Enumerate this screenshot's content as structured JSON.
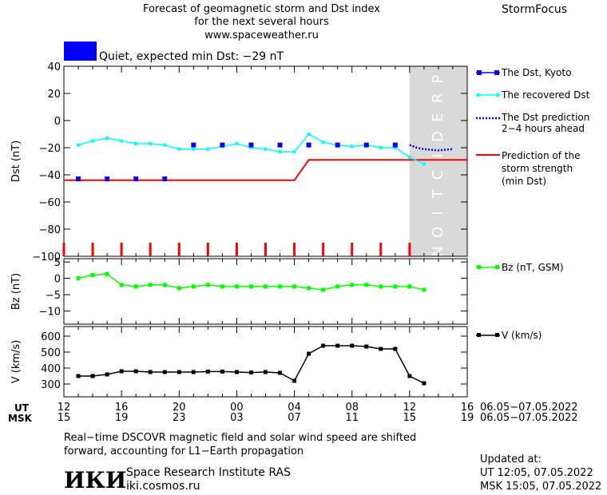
{
  "header": {
    "title_line1": "Forecast of geomagnetic storm and Dst index",
    "title_line2": "for the next several hours",
    "url": "www.spaceweather.ru",
    "brand": "StormFocus"
  },
  "status": {
    "label": "Quiet, expected min Dst: −29 nT",
    "color": "#0000ff"
  },
  "colors": {
    "dst_kyoto": "#0000ff",
    "dst_recovered": "#00ffff",
    "dst_prediction": "#0000ff",
    "storm_prediction": "#ff0000",
    "bz": "#00ff00",
    "v": "#000000",
    "prediction_zone": "#d9d9d9"
  },
  "chart_data": [
    {
      "type": "line",
      "panel": "dst",
      "ylabel": "Dst (nT)",
      "ylim": [
        -100,
        40
      ],
      "yticks": [
        40,
        20,
        0,
        -20,
        -40,
        -60,
        -80,
        -100
      ],
      "xlim": [
        0,
        28
      ],
      "prediction_label": "PREDICTION",
      "prediction_start_x": 24,
      "storm_markers_x": [
        0,
        2,
        4,
        6,
        8,
        10,
        12,
        14,
        16,
        18,
        20,
        22,
        24
      ],
      "series": [
        {
          "name": "The Dst, Kyoto",
          "kind": "markers",
          "x": [
            1,
            3,
            5,
            7,
            9,
            11,
            13,
            15,
            17,
            19,
            21,
            23
          ],
          "y": [
            -43,
            -43,
            -43,
            -43,
            -18,
            -18,
            -18,
            -18,
            -18,
            -18,
            -18,
            -18
          ]
        },
        {
          "name": "The recovered Dst",
          "kind": "line",
          "x": [
            1,
            2,
            3,
            4,
            5,
            6,
            7,
            8,
            9,
            10,
            11,
            12,
            13,
            14,
            15,
            16,
            17,
            18,
            19,
            20,
            21,
            22,
            23,
            24,
            25
          ],
          "y": [
            -18,
            -15,
            -13,
            -15,
            -17,
            -17,
            -18,
            -21,
            -21,
            -21,
            -19,
            -17,
            -20,
            -21,
            -23,
            -23,
            -10,
            -16,
            -18,
            -19,
            -18,
            -20,
            -20,
            -27,
            -32
          ]
        },
        {
          "name": "The Dst prediction 2−4 hours ahead",
          "kind": "dotted",
          "x": [
            24,
            24.5,
            25,
            26,
            27
          ],
          "y": [
            -18,
            -20,
            -21,
            -22,
            -21
          ]
        },
        {
          "name": "Prediction of the storm strength (min Dst)",
          "kind": "step",
          "x": [
            0,
            16,
            17,
            28
          ],
          "y": [
            -44,
            -44,
            -29,
            -29
          ]
        }
      ]
    },
    {
      "type": "line",
      "panel": "bz",
      "ylabel": "Bz (nT)",
      "ylim": [
        -14,
        6
      ],
      "yticks": [
        5,
        0,
        -5,
        -10
      ],
      "xlim": [
        0,
        28
      ],
      "series": [
        {
          "name": "Bz (nT, GSM)",
          "x": [
            1,
            2,
            3,
            4,
            5,
            6,
            7,
            8,
            9,
            10,
            11,
            12,
            13,
            14,
            15,
            16,
            17,
            18,
            19,
            20,
            21,
            22,
            23,
            24,
            25
          ],
          "y": [
            0,
            1,
            1.3,
            -2,
            -2.5,
            -2,
            -2,
            -3,
            -2.5,
            -2,
            -2.5,
            -2.5,
            -2.5,
            -2.5,
            -2.5,
            -2.5,
            -3,
            -3.5,
            -2.5,
            -2,
            -2,
            -2.5,
            -2.5,
            -2.5,
            -3.5
          ]
        }
      ]
    },
    {
      "type": "line",
      "panel": "v",
      "ylabel": "V (km/s)",
      "ylim": [
        220,
        660
      ],
      "yticks": [
        600,
        500,
        400,
        300
      ],
      "xlim": [
        0,
        28
      ],
      "series": [
        {
          "name": "V (km/s)",
          "x": [
            1,
            2,
            3,
            4,
            5,
            6,
            7,
            8,
            9,
            10,
            11,
            12,
            13,
            14,
            15,
            16,
            17,
            18,
            19,
            20,
            21,
            22,
            23,
            24,
            25
          ],
          "y": [
            350,
            350,
            360,
            380,
            380,
            375,
            375,
            375,
            375,
            378,
            378,
            375,
            372,
            375,
            370,
            320,
            490,
            540,
            540,
            540,
            535,
            520,
            520,
            350,
            305
          ]
        }
      ]
    }
  ],
  "legend": {
    "dst_kyoto": "The Dst, Kyoto",
    "dst_recovered": "The recovered Dst",
    "dst_prediction_line1": "The Dst prediction",
    "dst_prediction_line2": "2−4 hours ahead",
    "storm_line1": "Prediction of the",
    "storm_line2": "storm strength",
    "storm_line3": "(min Dst)",
    "bz": "Bz (nT, GSM)",
    "v": "V (km/s)"
  },
  "time_axis": {
    "ut_label": "UT",
    "msk_label": "MSK",
    "ut_ticks": [
      "12",
      "16",
      "20",
      "00",
      "04",
      "08",
      "12",
      "16"
    ],
    "msk_ticks": [
      "15",
      "19",
      "23",
      "03",
      "07",
      "11",
      "15",
      "19"
    ],
    "ut_date_range": "06.05−07.05.2022",
    "msk_date_range": "06.05−07.05.2022"
  },
  "footer": {
    "note_line1": "Real−time DSCOVR magnetic field and solar wind speed are shifted",
    "note_line2": "forward, accounting for L1−Earth propagation",
    "logo_text": "ИКИ",
    "institute": "Space Research Institute RAS",
    "institute_url": "iki.cosmos.ru",
    "updated_label": "Updated at:",
    "updated_ut": "UT   12:05, 07.05.2022",
    "updated_msk": "MSK 15:05, 07.05.2022"
  }
}
